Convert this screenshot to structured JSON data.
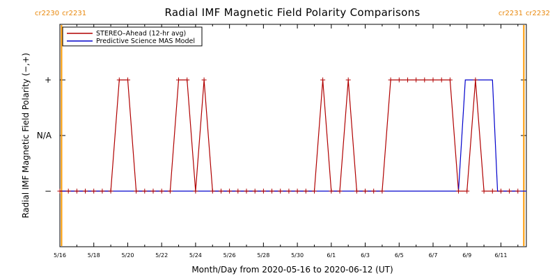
{
  "chart_data": {
    "type": "line",
    "title": "Radial IMF Magnetic Field Polarity Comparisons",
    "xlabel": "Month/Day from 2020-05-16 to 2020-06-12 (UT)",
    "ylabel": "Radial IMF Magnetic Field Polarity (−,+)",
    "x_ticks": [
      "5/16",
      "5/18",
      "5/20",
      "5/22",
      "5/24",
      "5/26",
      "5/28",
      "5/30",
      "6/1",
      "6/3",
      "6/5",
      "6/7",
      "6/9",
      "6/11"
    ],
    "x_tick_days": [
      0,
      2,
      4,
      6,
      8,
      10,
      12,
      14,
      16,
      18,
      20,
      22,
      24,
      26
    ],
    "xlim": [
      0,
      27.5
    ],
    "y_ticks": [
      "−",
      "N/A",
      "+"
    ],
    "y_tick_values": [
      -1,
      0,
      1
    ],
    "ylim": [
      -2,
      2
    ],
    "carrington_labels_left": [
      "cr2230",
      "cr2231"
    ],
    "carrington_labels_right": [
      "cr2231",
      "cr2232"
    ],
    "carrington_boundary_days": [
      0.1,
      27.35
    ],
    "colors": {
      "stereo": "#b00000",
      "mas": "#0000cc",
      "carrington": "#ff9900"
    },
    "legend_position": "top-left",
    "series": [
      {
        "name": "STEREO–Ahead (12-hr avg)",
        "marker": "plus",
        "x": [
          0,
          0.5,
          1,
          1.5,
          2,
          2.5,
          3,
          3.5,
          4,
          4.5,
          5,
          5.5,
          6,
          6.5,
          7,
          7.5,
          8,
          8.5,
          9,
          9.5,
          10,
          10.5,
          11,
          11.5,
          12,
          12.5,
          13,
          13.5,
          14,
          14.5,
          15,
          15.5,
          16,
          16.5,
          17,
          17.5,
          18,
          18.5,
          19,
          19.5,
          20,
          20.5,
          21,
          21.5,
          22,
          22.5,
          23,
          23.5,
          24,
          24.5,
          25,
          25.5,
          26,
          26.5,
          27
        ],
        "y": [
          -1,
          -1,
          -1,
          -1,
          -1,
          -1,
          -1,
          1,
          1,
          -1,
          -1,
          -1,
          -1,
          -1,
          1,
          1,
          -1,
          1,
          -1,
          -1,
          -1,
          -1,
          -1,
          -1,
          -1,
          -1,
          -1,
          -1,
          -1,
          -1,
          -1,
          1,
          -1,
          -1,
          1,
          -1,
          -1,
          -1,
          -1,
          1,
          1,
          1,
          1,
          1,
          1,
          1,
          1,
          -1,
          -1,
          1,
          -1,
          -1,
          -1,
          -1,
          -1
        ]
      },
      {
        "name": "Predictive Science MAS Model",
        "marker": "none",
        "x": [
          0,
          23.5,
          23.9,
          24.7,
          25,
          25.5,
          25.8,
          26.2,
          27.5
        ],
        "y": [
          -1,
          -1,
          1,
          1,
          1,
          1,
          -1,
          -1,
          -1
        ]
      }
    ]
  }
}
